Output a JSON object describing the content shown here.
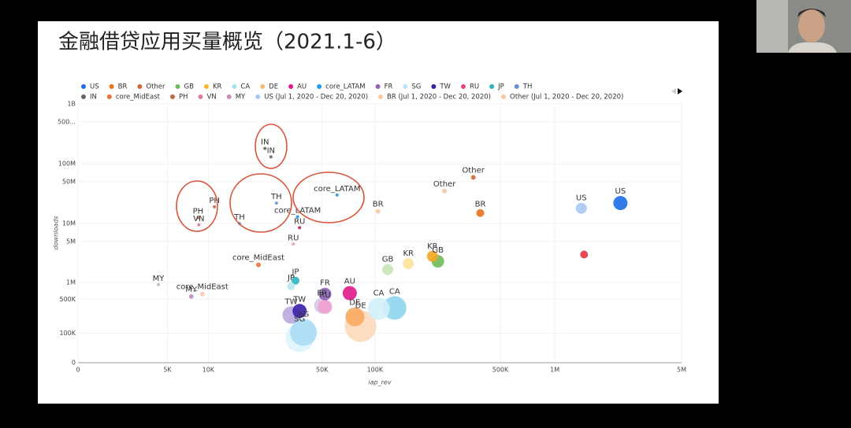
{
  "chart_data": {
    "type": "scatter",
    "title": "金融借贷应用买量概览（2021.1-6）",
    "xlabel": "iap_rev",
    "ylabel": "downloads",
    "xscale": "symlog",
    "yscale": "symlog",
    "grid": true,
    "legend": "top",
    "xlim": [
      0,
      5000000
    ],
    "ylim": [
      0,
      1000000000
    ],
    "xticks": [
      0,
      {
        "value": 5000,
        "label": "5K"
      },
      {
        "value": 10000,
        "label": "10K"
      },
      {
        "value": 50000,
        "label": "50K"
      },
      {
        "value": 100000,
        "label": "100K"
      },
      {
        "value": 500000,
        "label": "500K"
      },
      {
        "value": 1000000,
        "label": "1M"
      },
      {
        "value": 5000000,
        "label": "5M"
      }
    ],
    "yticks": [
      0,
      {
        "value": 100000,
        "label": "100K"
      },
      {
        "value": 500000,
        "label": "500K"
      },
      {
        "value": 1000000,
        "label": "1M"
      },
      {
        "value": 5000000,
        "label": "5M"
      },
      {
        "value": 10000000,
        "label": "10M"
      },
      {
        "value": 50000000,
        "label": "50M"
      },
      {
        "value": 100000000,
        "label": "100M"
      },
      {
        "value": 500000000,
        "label": "500..."
      },
      {
        "value": 1000000000,
        "label": "1B"
      }
    ],
    "series": [
      {
        "name": "US",
        "color": "#1a6fe8",
        "x": [
          2300000
        ],
        "values": [
          22000000
        ],
        "sizes": [
          9
        ],
        "labels": [
          "US"
        ]
      },
      {
        "name": "BR",
        "color": "#e8711a",
        "x": [
          387000
        ],
        "values": [
          15000000
        ],
        "sizes": [
          5
        ],
        "labels": [
          "BR"
        ]
      },
      {
        "name": "Other",
        "color": "#d0683a",
        "x": [
          354000
        ],
        "values": [
          59000000
        ],
        "sizes": [
          3
        ],
        "labels": [
          "Other"
        ]
      },
      {
        "name": "GB",
        "color": "#6dbb5a",
        "x": [
          225000,
          118000
        ],
        "values": [
          2300000,
          1660000
        ],
        "sizes": [
          8,
          7
        ],
        "labels": [
          "GB",
          "GB"
        ],
        "colors": [
          "#6dbb5a",
          "#c8e6b8"
        ]
      },
      {
        "name": "KR",
        "color": "#f5b731",
        "x": [
          210000,
          154000
        ],
        "values": [
          2800000,
          2100000
        ],
        "sizes": [
          7,
          7
        ],
        "labels": [
          "KR",
          "KR"
        ],
        "colors": [
          "#f5a623",
          "#fbe29a"
        ]
      },
      {
        "name": "CA",
        "color": "#a8e1f0",
        "x": [
          129000,
          105000
        ],
        "values": [
          343000,
          330000
        ],
        "sizes": [
          15,
          14
        ],
        "labels": [
          "CA",
          "CA"
        ],
        "colors": [
          "#8fd6f0",
          "#d2f0fa"
        ]
      },
      {
        "name": "DE",
        "color": "#f9b97a",
        "x": [
          83000,
          77000
        ],
        "values": [
          146000,
          230000
        ],
        "sizes": [
          20,
          12
        ],
        "labels": [
          "DE",
          "DE"
        ],
        "colors": [
          "#fcd9b8",
          "#f8a960"
        ]
      },
      {
        "name": "AU",
        "color": "#e0198a",
        "x": [
          72000
        ],
        "values": [
          643000
        ],
        "sizes": [
          9
        ],
        "labels": [
          "AU"
        ]
      },
      {
        "name": "core_LATAM",
        "color": "#1e9be8",
        "x": [
          61000,
          36000
        ],
        "values": [
          30000000,
          13000000
        ],
        "sizes": [
          2,
          2
        ],
        "labels": [
          "core_LATAM",
          "core_LATAM"
        ]
      },
      {
        "name": "FR",
        "color": "#8e63b8",
        "x": [
          52000,
          50000
        ],
        "values": [
          620000,
          380000
        ],
        "sizes": [
          8,
          10
        ],
        "labels": [
          "FR",
          "FR"
        ],
        "colors": [
          "#8e63b8",
          "#d7c6ea"
        ]
      },
      {
        "name": "SG",
        "color": "#b7e4f7",
        "x": [
          39000,
          37000
        ],
        "values": [
          105000,
          75000
        ],
        "sizes": [
          17,
          18
        ],
        "labels": [
          "SG",
          "SG"
        ],
        "colors": [
          "#a8dcf5",
          "#e0f4fc"
        ]
      },
      {
        "name": "TW",
        "color": "#3a1fa8",
        "x": [
          37000,
          33000
        ],
        "values": [
          300000,
          250000
        ],
        "sizes": [
          9,
          11
        ],
        "labels": [
          "TW",
          "TW"
        ],
        "colors": [
          "#3a1fa8",
          "#b9a8e0"
        ]
      },
      {
        "name": "RU",
        "color": "#e0457b",
        "x": [
          52000,
          37000,
          34000,
          1450000
        ],
        "values": [
          360000,
          8500000,
          4500000,
          3000000
        ],
        "sizes": [
          9,
          2,
          2,
          5
        ],
        "labels": [
          "RU",
          "RU",
          "RU",
          null
        ],
        "colors": [
          "#f0a0d0",
          "#c02040",
          "#f0a0b0",
          "#e53940"
        ]
      },
      {
        "name": "JP",
        "color": "#2cb5c0",
        "x": [
          35000,
          33000
        ],
        "values": [
          1070000,
          850000
        ],
        "sizes": [
          5,
          5
        ],
        "labels": [
          "JP",
          "JP"
        ],
        "colors": [
          "#2cb5c0",
          "#b5e8f0"
        ]
      },
      {
        "name": "TH",
        "color": "#6b8fd6",
        "x": [
          27000,
          16000
        ],
        "values": [
          22000000,
          10000000
        ],
        "sizes": [
          2,
          2
        ],
        "labels": [
          "TH",
          "TH"
        ]
      },
      {
        "name": "IN",
        "color": "#666666",
        "x": [
          25000,
          23000
        ],
        "values": [
          130000000,
          180000000
        ],
        "sizes": [
          2,
          2
        ],
        "labels": [
          "IN",
          "IN"
        ]
      },
      {
        "name": "core_MidEast",
        "color": "#e8743a",
        "x": [
          21000,
          9100
        ],
        "values": [
          2000000,
          620000
        ],
        "sizes": [
          3,
          3
        ],
        "labels": [
          "core_MidEast",
          "core_MidEast"
        ],
        "colors": [
          "#e8743a",
          "#f8c9b0"
        ]
      },
      {
        "name": "PH",
        "color": "#c0654a",
        "x": [
          11000,
          8500
        ],
        "values": [
          19000000,
          12500000
        ],
        "sizes": [
          2,
          2
        ],
        "labels": [
          "PH",
          "PH"
        ]
      },
      {
        "name": "VN",
        "color": "#e07a9a",
        "x": [
          8600
        ],
        "values": [
          9500000
        ],
        "sizes": [
          2
        ],
        "labels": [
          "VN"
        ]
      },
      {
        "name": "MY",
        "color": "#c78fb5",
        "x": [
          4200,
          7600
        ],
        "values": [
          910000,
          560000
        ],
        "sizes": [
          2,
          3
        ],
        "labels": [
          "MY",
          "MY"
        ],
        "colors": [
          "#c8b0c0",
          "#c78fb5"
        ]
      },
      {
        "name": "US (Jul 1, 2020 - Dec 20, 2020)",
        "color": "#a8c8f5",
        "x": [
          1400000
        ],
        "values": [
          18000000
        ],
        "sizes": [
          7
        ],
        "labels": [
          "US"
        ]
      },
      {
        "name": "BR (Jul 1, 2020 - Dec 20, 2020)",
        "color": "#f8c9a0",
        "x": [
          104000
        ],
        "values": [
          16000000
        ],
        "sizes": [
          3
        ],
        "labels": [
          "BR"
        ]
      },
      {
        "name": "Other (Jul 1, 2020 - Dec 20, 2020)",
        "color": "#f5c6a8",
        "x": [
          245000
        ],
        "values": [
          35000000
        ],
        "sizes": [
          3
        ],
        "labels": [
          "Other"
        ]
      }
    ]
  }
}
